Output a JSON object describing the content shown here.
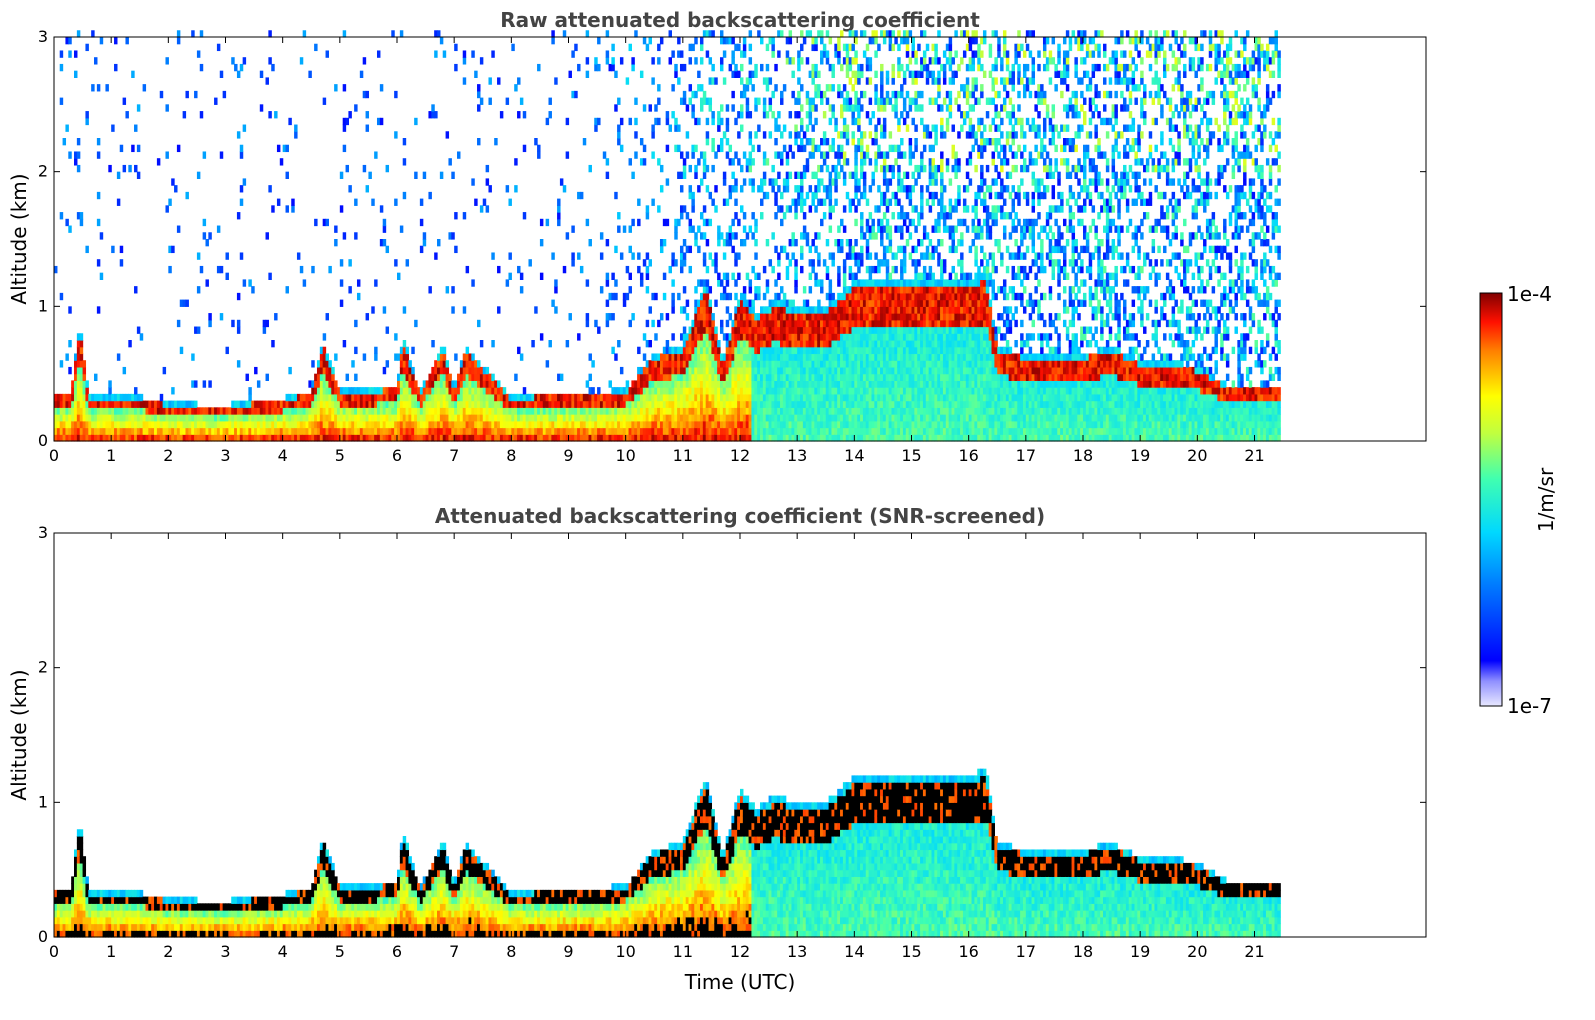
{
  "chart_data": [
    {
      "type": "heatmap",
      "title": "Raw attenuated backscattering coefficient",
      "xlabel": "",
      "ylabel": "Altitude (km)",
      "xlim": [
        0,
        24
      ],
      "ylim": [
        0,
        3
      ],
      "x_ticks": [
        0,
        1,
        2,
        3,
        4,
        5,
        6,
        7,
        8,
        9,
        10,
        11,
        12,
        13,
        14,
        15,
        16,
        17,
        18,
        19,
        20,
        21
      ],
      "y_ticks": [
        0,
        1,
        2,
        3
      ],
      "data_end_time": 21.45,
      "mode": "raw",
      "aerosol_layer_top_km": [
        [
          0,
          0.36
        ],
        [
          0.3,
          0.36
        ],
        [
          0.45,
          0.9
        ],
        [
          0.6,
          0.34
        ],
        [
          1.5,
          0.33
        ],
        [
          2,
          0.28
        ],
        [
          3,
          0.27
        ],
        [
          3.7,
          0.3
        ],
        [
          4.5,
          0.36
        ],
        [
          4.7,
          0.75
        ],
        [
          5,
          0.38
        ],
        [
          6,
          0.4
        ],
        [
          6.1,
          0.78
        ],
        [
          6.4,
          0.36
        ],
        [
          6.8,
          0.72
        ],
        [
          7,
          0.4
        ],
        [
          7.2,
          0.7
        ],
        [
          8,
          0.33
        ],
        [
          9,
          0.36
        ],
        [
          10,
          0.38
        ],
        [
          10.5,
          0.65
        ],
        [
          11,
          0.7
        ],
        [
          11.4,
          1.2
        ],
        [
          11.7,
          0.6
        ],
        [
          12,
          1.1
        ],
        [
          12.3,
          0.95
        ],
        [
          12.6,
          1.05
        ],
        [
          13,
          1.0
        ],
        [
          13.5,
          1.0
        ],
        [
          14,
          1.2
        ],
        [
          14.5,
          1.2
        ],
        [
          15,
          1.22
        ],
        [
          15.5,
          1.2
        ],
        [
          16,
          1.2
        ],
        [
          16.3,
          1.25
        ],
        [
          16.5,
          0.7
        ],
        [
          17,
          0.65
        ],
        [
          17.5,
          0.65
        ],
        [
          18,
          0.65
        ],
        [
          18.5,
          0.7
        ],
        [
          19,
          0.6
        ],
        [
          19.5,
          0.6
        ],
        [
          20,
          0.55
        ],
        [
          20.5,
          0.42
        ],
        [
          21,
          0.42
        ],
        [
          21.45,
          0.42
        ]
      ],
      "colorbar": {
        "min_label": "1e-7",
        "max_label": "1e-4",
        "label": "1/m/sr",
        "scale": "log",
        "range": [
          1e-07,
          0.0001
        ],
        "colormap": "jet"
      }
    },
    {
      "type": "heatmap",
      "title": "Attenuated backscattering coefficient (SNR-screened)",
      "xlabel": "Time (UTC)",
      "ylabel": "Altitude (km)",
      "xlim": [
        0,
        24
      ],
      "ylim": [
        0,
        3
      ],
      "x_ticks": [
        0,
        1,
        2,
        3,
        4,
        5,
        6,
        7,
        8,
        9,
        10,
        11,
        12,
        13,
        14,
        15,
        16,
        17,
        18,
        19,
        20,
        21
      ],
      "y_ticks": [
        0,
        1,
        2,
        3
      ],
      "data_end_time": 21.45,
      "mode": "screened",
      "aerosol_layer_top_km": [
        [
          0,
          0.36
        ],
        [
          0.3,
          0.36
        ],
        [
          0.45,
          0.9
        ],
        [
          0.6,
          0.34
        ],
        [
          1.5,
          0.33
        ],
        [
          2,
          0.28
        ],
        [
          3,
          0.27
        ],
        [
          3.7,
          0.3
        ],
        [
          4.5,
          0.36
        ],
        [
          4.7,
          0.75
        ],
        [
          5,
          0.38
        ],
        [
          6,
          0.4
        ],
        [
          6.1,
          0.78
        ],
        [
          6.4,
          0.36
        ],
        [
          6.8,
          0.72
        ],
        [
          7,
          0.4
        ],
        [
          7.2,
          0.7
        ],
        [
          8,
          0.33
        ],
        [
          9,
          0.36
        ],
        [
          10,
          0.38
        ],
        [
          10.5,
          0.65
        ],
        [
          11,
          0.7
        ],
        [
          11.4,
          1.2
        ],
        [
          11.7,
          0.6
        ],
        [
          12,
          1.1
        ],
        [
          12.3,
          0.95
        ],
        [
          12.6,
          1.05
        ],
        [
          13,
          1.0
        ],
        [
          13.5,
          1.0
        ],
        [
          14,
          1.2
        ],
        [
          14.5,
          1.2
        ],
        [
          15,
          1.22
        ],
        [
          15.5,
          1.2
        ],
        [
          16,
          1.2
        ],
        [
          16.3,
          1.25
        ],
        [
          16.5,
          0.7
        ],
        [
          17,
          0.65
        ],
        [
          17.5,
          0.65
        ],
        [
          18,
          0.65
        ],
        [
          18.5,
          0.7
        ],
        [
          19,
          0.6
        ],
        [
          19.5,
          0.6
        ],
        [
          20,
          0.55
        ],
        [
          20.5,
          0.42
        ],
        [
          21,
          0.42
        ],
        [
          21.45,
          0.42
        ]
      ],
      "colorbar": {
        "min_label": "1e-7",
        "max_label": "1e-4",
        "label": "1/m/sr",
        "scale": "log",
        "range": [
          1e-07,
          0.0001
        ],
        "colormap": "jet"
      }
    }
  ]
}
